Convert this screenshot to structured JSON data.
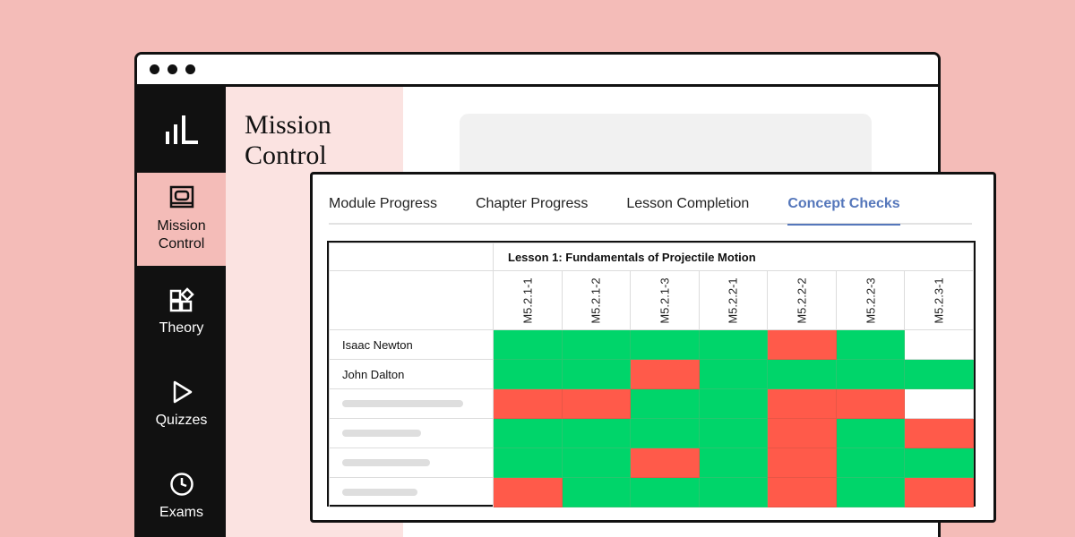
{
  "sidebar": {
    "logo_icon": "bar-chart-logo",
    "items": [
      {
        "label": "Mission\nControl",
        "icon": "monitor-icon",
        "active": true
      },
      {
        "label": "Theory",
        "icon": "shapes-icon",
        "active": false
      },
      {
        "label": "Quizzes",
        "icon": "play-icon",
        "active": false
      },
      {
        "label": "Exams",
        "icon": "clock-icon",
        "active": false
      }
    ]
  },
  "page": {
    "title": "Mission\nControl"
  },
  "tabs": [
    {
      "label": "Module Progress",
      "active": false
    },
    {
      "label": "Chapter Progress",
      "active": false
    },
    {
      "label": "Lesson Completion",
      "active": false
    },
    {
      "label": "Concept Checks",
      "active": true
    }
  ],
  "grid": {
    "lesson_title": "Lesson 1: Fundamentals of Projectile Motion",
    "columns": [
      "M5.2.1-1",
      "M5.2.1-2",
      "M5.2.1-3",
      "M5.2.2-1",
      "M5.2.2-2",
      "M5.2.2-3",
      "M5.2.3-1"
    ],
    "rows": [
      {
        "name": "Isaac Newton",
        "results": [
          "pass",
          "pass",
          "pass",
          "pass",
          "fail",
          "pass",
          "none"
        ]
      },
      {
        "name": "John Dalton",
        "results": [
          "pass",
          "pass",
          "fail",
          "pass",
          "pass",
          "pass",
          "pass"
        ]
      },
      {
        "name": "",
        "results": [
          "fail",
          "fail",
          "pass",
          "pass",
          "fail",
          "fail",
          "none"
        ]
      },
      {
        "name": "",
        "results": [
          "pass",
          "pass",
          "pass",
          "pass",
          "fail",
          "pass",
          "fail"
        ]
      },
      {
        "name": "",
        "results": [
          "pass",
          "pass",
          "fail",
          "pass",
          "fail",
          "pass",
          "pass"
        ]
      },
      {
        "name": "",
        "results": [
          "fail",
          "pass",
          "pass",
          "pass",
          "fail",
          "pass",
          "fail"
        ]
      }
    ]
  },
  "colors": {
    "pass": "#00d56a",
    "fail": "#ff5a4a",
    "accent": "#5577bb",
    "background": "#f4bcb8"
  }
}
